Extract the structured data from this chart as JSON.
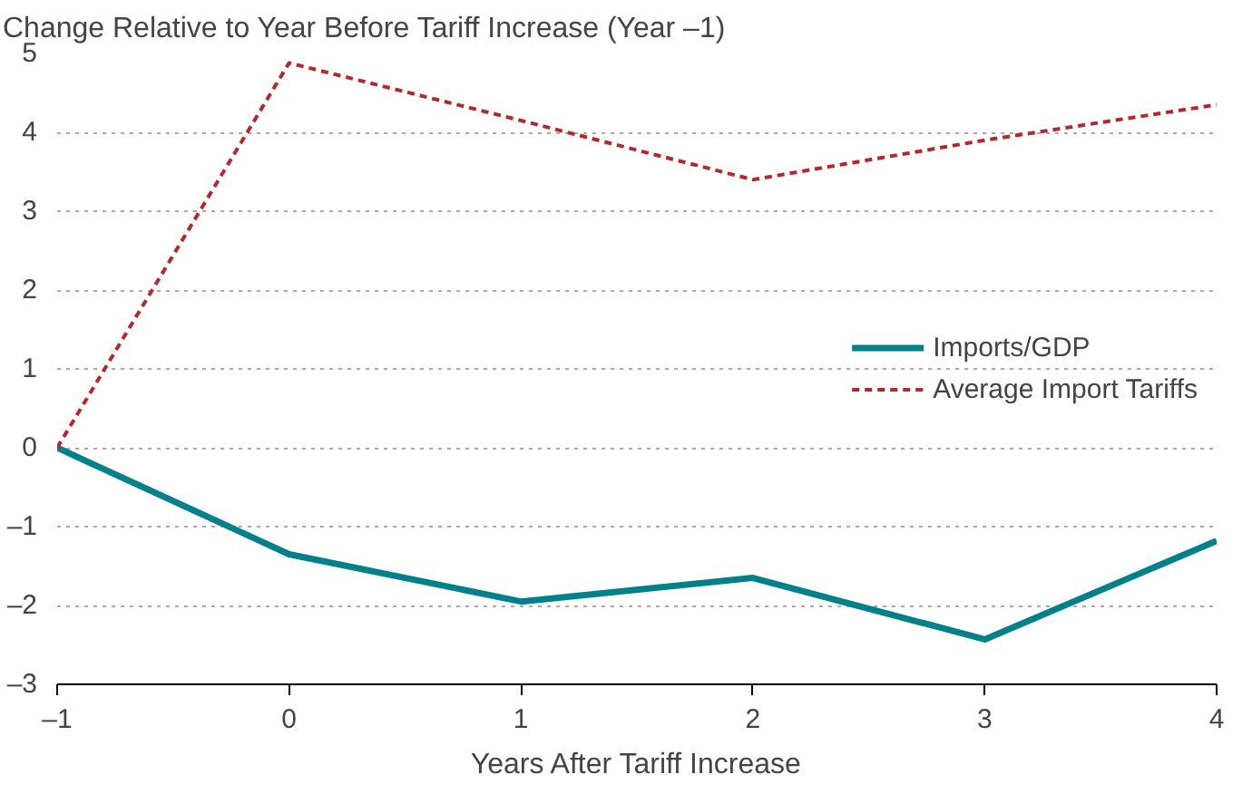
{
  "chart_data": {
    "type": "line",
    "ylabel": "Change Relative to Year Before Tariff Increase (Year –1)",
    "xlabel": "Years After Tariff Increase",
    "x": [
      -1,
      0,
      1,
      2,
      3,
      4
    ],
    "series": [
      {
        "name": "Imports/GDP",
        "color": "#00808a",
        "values": [
          0,
          -1.35,
          -1.95,
          -1.65,
          -2.43,
          -1.18
        ],
        "line_style": "solid"
      },
      {
        "name": "Average Import Tariffs",
        "color": "#b5272d",
        "values": [
          0,
          4.88,
          4.15,
          3.4,
          3.9,
          4.35
        ],
        "line_style": "dashed"
      }
    ],
    "xlim": [
      -1,
      4
    ],
    "xticks": [
      {
        "value": -1,
        "label": "–1"
      },
      0,
      1,
      2,
      3,
      4
    ],
    "ylim": [
      -3,
      5
    ],
    "yticks": [
      {
        "value": -3,
        "label": "–3"
      },
      {
        "value": -2,
        "label": "–2"
      },
      {
        "value": -1,
        "label": "–1"
      },
      0,
      1,
      2,
      3,
      4,
      5
    ],
    "grid": "y",
    "legend": "right",
    "marker": "none"
  }
}
